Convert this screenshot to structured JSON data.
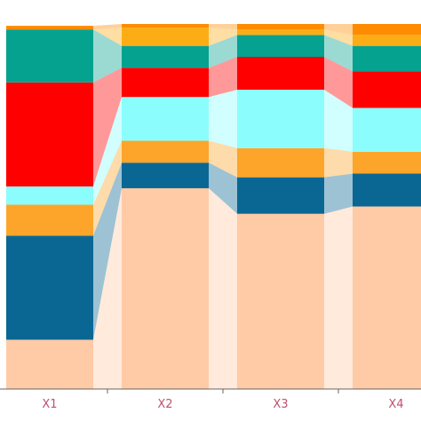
{
  "chart_data": {
    "type": "bar",
    "stacked": true,
    "connected_ribbons": true,
    "categories": [
      "X1",
      "X2",
      "X3",
      "X4"
    ],
    "ylim": [
      0,
      100
    ],
    "series": [
      {
        "color": "#ffcaa6",
        "values": [
          13.5,
          55.0,
          48.0,
          50.0
        ]
      },
      {
        "color": "#0a6794",
        "values": [
          28.5,
          7.0,
          10.0,
          9.0
        ]
      },
      {
        "color": "#fca52a",
        "values": [
          8.5,
          6.0,
          8.0,
          6.0
        ]
      },
      {
        "color": "#8cfdfd",
        "values": [
          5.0,
          12.0,
          16.0,
          12.0
        ]
      },
      {
        "color": "#ff0000",
        "values": [
          28.5,
          8.0,
          9.0,
          10.0
        ]
      },
      {
        "color": "#05a290",
        "values": [
          14.5,
          6.0,
          6.0,
          7.0
        ]
      },
      {
        "color": "#fcad16",
        "values": [
          0.0,
          5.0,
          1.5,
          3.0
        ]
      },
      {
        "color": "#ff8c00",
        "values": [
          1.0,
          1.0,
          1.5,
          3.0
        ]
      }
    ]
  }
}
